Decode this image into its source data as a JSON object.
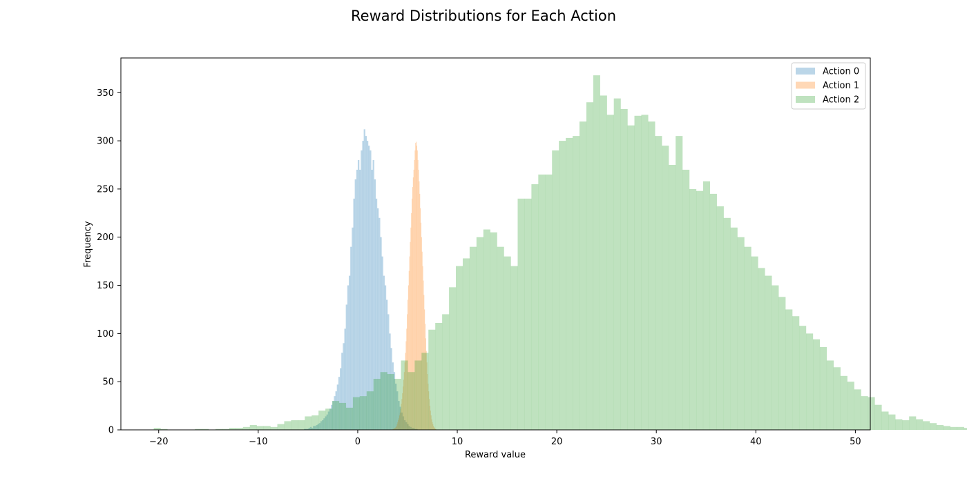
{
  "chart_data": {
    "type": "histogram",
    "title": "Reward Distributions for Each Action",
    "xlabel": "Reward value",
    "ylabel": "Frequency",
    "xlim": [
      -23.8,
      51.5
    ],
    "ylim": [
      0,
      386
    ],
    "xticks": [
      -20,
      -10,
      0,
      10,
      20,
      30,
      40,
      50
    ],
    "yticks": [
      0,
      50,
      100,
      150,
      200,
      250,
      300,
      350
    ],
    "xtick_labels": [
      "−20",
      "−10",
      "0",
      "10",
      "20",
      "30",
      "40",
      "50"
    ],
    "ytick_labels": [
      "0",
      "50",
      "100",
      "150",
      "200",
      "250",
      "300",
      "350"
    ],
    "legend_position": "top-right",
    "grid": false,
    "series": [
      {
        "name": "Action 0",
        "color": "#1f77b4",
        "opacity": 0.3,
        "bin_start": -5.4,
        "bin_width": 0.15,
        "counts": [
          1,
          1,
          1,
          2,
          3,
          2,
          4,
          4,
          5,
          6,
          7,
          9,
          10,
          12,
          14,
          16,
          19,
          22,
          26,
          30,
          35,
          40,
          47,
          55,
          64,
          80,
          90,
          105,
          130,
          150,
          160,
          190,
          210,
          240,
          260,
          270,
          280,
          270,
          290,
          300,
          312,
          305,
          300,
          295,
          290,
          270,
          280,
          260,
          240,
          230,
          220,
          200,
          180,
          160,
          150,
          135,
          120,
          100,
          85,
          70,
          60,
          48,
          40,
          30,
          24,
          18,
          14,
          10,
          8,
          6,
          4,
          3,
          2,
          2,
          1,
          1
        ]
      },
      {
        "name": "Action 1",
        "color": "#ff7f0e",
        "opacity": 0.3,
        "bin_start": 3.5,
        "bin_width": 0.06,
        "counts": [
          1,
          1,
          1,
          2,
          2,
          3,
          4,
          6,
          8,
          10,
          12,
          15,
          18,
          22,
          27,
          32,
          38,
          45,
          52,
          60,
          70,
          80,
          92,
          105,
          120,
          135,
          150,
          165,
          180,
          195,
          210,
          225,
          240,
          252,
          262,
          270,
          280,
          290,
          298,
          299,
          295,
          290,
          280,
          270,
          258,
          245,
          230,
          215,
          200,
          185,
          170,
          155,
          140,
          125,
          110,
          95,
          82,
          70,
          58,
          48,
          40,
          32,
          25,
          20,
          15,
          11,
          8,
          6,
          4,
          3,
          2,
          1,
          1
        ]
      },
      {
        "name": "Action 2",
        "color": "#2ca02c",
        "opacity": 0.3,
        "bin_start": -20.5,
        "bin_width": 0.69,
        "counts": [
          2,
          1,
          0,
          0,
          0,
          0,
          1,
          1,
          0,
          1,
          1,
          2,
          2,
          3,
          5,
          4,
          4,
          3,
          6,
          9,
          10,
          10,
          14,
          15,
          20,
          22,
          30,
          28,
          23,
          34,
          35,
          40,
          53,
          60,
          58,
          53,
          72,
          60,
          72,
          80,
          104,
          111,
          120,
          148,
          170,
          178,
          190,
          200,
          208,
          205,
          190,
          180,
          170,
          240,
          240,
          255,
          265,
          265,
          290,
          300,
          303,
          305,
          320,
          340,
          368,
          347,
          327,
          344,
          333,
          316,
          326,
          327,
          320,
          305,
          295,
          275,
          305,
          270,
          250,
          248,
          258,
          245,
          232,
          220,
          210,
          200,
          190,
          180,
          168,
          160,
          150,
          138,
          125,
          118,
          108,
          100,
          94,
          86,
          72,
          65,
          56,
          50,
          42,
          35,
          34,
          26,
          19,
          16,
          11,
          10,
          14,
          11,
          9,
          7,
          5,
          4,
          3,
          3,
          2,
          3,
          2,
          2,
          1,
          1,
          1,
          1,
          1,
          0,
          0,
          1,
          1,
          0,
          0,
          0,
          1,
          0,
          0,
          1,
          0,
          0,
          0,
          0,
          0,
          0,
          0,
          1
        ]
      }
    ]
  }
}
